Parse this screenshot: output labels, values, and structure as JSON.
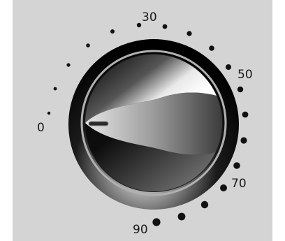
{
  "scale": {
    "labels": [
      {
        "text": "0"
      },
      {
        "text": "30"
      },
      {
        "text": "50"
      },
      {
        "text": "70"
      },
      {
        "text": "90"
      }
    ]
  },
  "colors": {
    "panel_background": "#d4d4d4",
    "tick_dots": "#111111",
    "dial_rim": "#0a0a0a",
    "pointer_groove": "#2a2a2a"
  },
  "icons": {
    "knob": "rotary-knob-icon",
    "pointer": "knob-pointer-icon"
  }
}
